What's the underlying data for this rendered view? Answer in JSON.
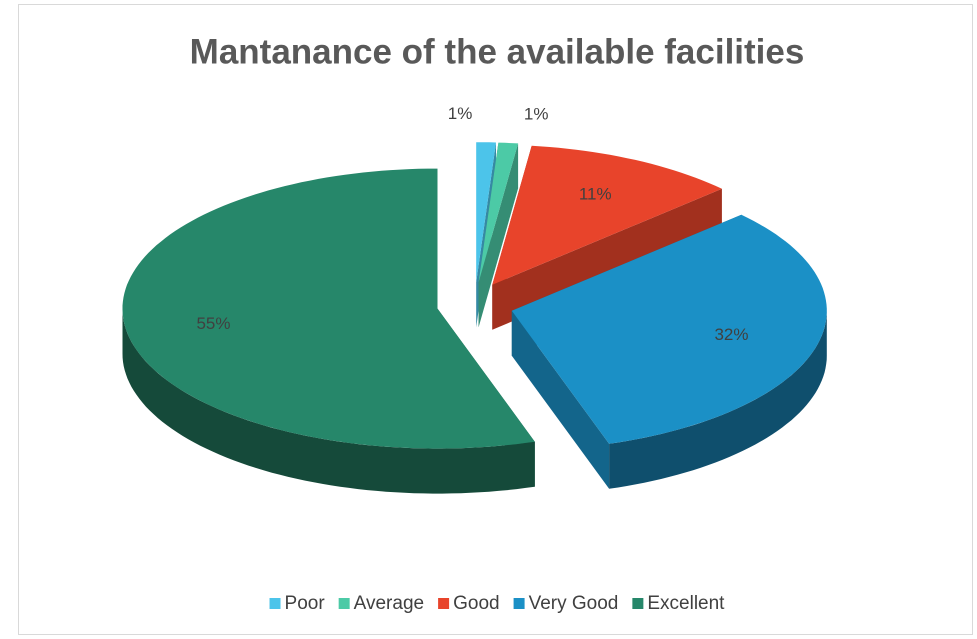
{
  "chart_data": {
    "type": "pie",
    "title": "Mantanance of the available facilities",
    "categories": [
      "Poor",
      "Average",
      "Good",
      "Very Good",
      "Excellent"
    ],
    "values": [
      1,
      1,
      11,
      32,
      55
    ],
    "value_labels": [
      "1%",
      "1%",
      "11%",
      "32%",
      "55%"
    ],
    "colors": [
      "#4cc4ea",
      "#4ccaa6",
      "#e8442b",
      "#1b90c6",
      "#26876a"
    ],
    "legend": "bottom"
  }
}
